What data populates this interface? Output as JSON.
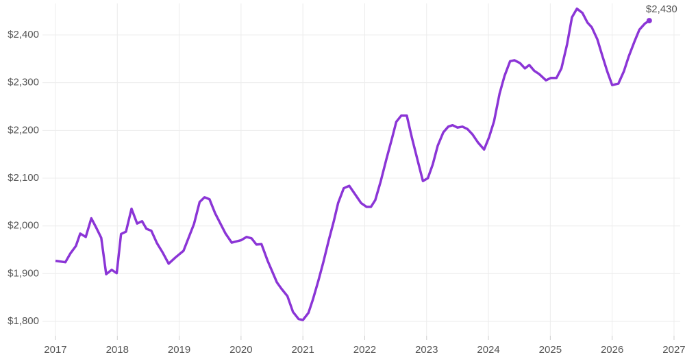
{
  "chart_data": {
    "type": "line",
    "x": [
      2017.0,
      2017.16,
      2017.24,
      2017.33,
      2017.4,
      2017.49,
      2017.58,
      2017.66,
      2017.74,
      2017.82,
      2017.91,
      2017.99,
      2018.06,
      2018.14,
      2018.23,
      2018.32,
      2018.4,
      2018.47,
      2018.55,
      2018.64,
      2018.73,
      2018.83,
      2018.94,
      2019.07,
      2019.24,
      2019.33,
      2019.41,
      2019.49,
      2019.58,
      2019.75,
      2019.85,
      2020.0,
      2020.09,
      2020.17,
      2020.25,
      2020.33,
      2020.43,
      2020.58,
      2020.65,
      2020.75,
      2020.84,
      2020.93,
      2021.0,
      2021.09,
      2021.16,
      2021.25,
      2021.33,
      2021.42,
      2021.5,
      2021.57,
      2021.66,
      2021.75,
      2021.84,
      2021.94,
      2022.03,
      2022.1,
      2022.17,
      2022.26,
      2022.35,
      2022.44,
      2022.51,
      2022.59,
      2022.68,
      2022.76,
      2022.86,
      2022.94,
      2023.02,
      2023.1,
      2023.18,
      2023.27,
      2023.35,
      2023.42,
      2023.5,
      2023.58,
      2023.66,
      2023.74,
      2023.83,
      2023.93,
      2024.01,
      2024.09,
      2024.18,
      2024.26,
      2024.35,
      2024.42,
      2024.51,
      2024.59,
      2024.66,
      2024.74,
      2024.82,
      2024.93,
      2025.01,
      2025.1,
      2025.18,
      2025.27,
      2025.35,
      2025.43,
      2025.52,
      2025.6,
      2025.67,
      2025.76,
      2025.84,
      2025.92,
      2026.0,
      2026.1,
      2026.19,
      2026.27,
      2026.36,
      2026.44,
      2026.53,
      2026.6
    ],
    "series": [
      {
        "color": "#8b35d6",
        "values": [
          1927,
          1924,
          1942,
          1958,
          1984,
          1977,
          2016,
          1996,
          1975,
          1899,
          1908,
          1901,
          1983,
          1988,
          2036,
          2005,
          2010,
          1994,
          1990,
          1964,
          1945,
          1921,
          1934,
          1948,
          2004,
          2050,
          2060,
          2056,
          2027,
          1984,
          1965,
          1970,
          1977,
          1974,
          1961,
          1962,
          1927,
          1882,
          1869,
          1853,
          1820,
          1805,
          1803,
          1818,
          1845,
          1885,
          1924,
          1971,
          2010,
          2048,
          2079,
          2084,
          2067,
          2048,
          2040,
          2040,
          2054,
          2094,
          2140,
          2183,
          2218,
          2231,
          2231,
          2186,
          2135,
          2094,
          2100,
          2129,
          2168,
          2196,
          2208,
          2211,
          2206,
          2208,
          2203,
          2192,
          2175,
          2160,
          2186,
          2219,
          2277,
          2314,
          2345,
          2347,
          2341,
          2330,
          2337,
          2325,
          2318,
          2305,
          2310,
          2310,
          2330,
          2380,
          2437,
          2455,
          2446,
          2426,
          2416,
          2391,
          2357,
          2324,
          2295,
          2298,
          2324,
          2356,
          2386,
          2411,
          2424,
          2430
        ],
        "value_labels": [
          null,
          null,
          null,
          null,
          null,
          null,
          null,
          null,
          null,
          null,
          null,
          null,
          null,
          null,
          null,
          null,
          null,
          null,
          null,
          null,
          null,
          null,
          null,
          null,
          null,
          null,
          null,
          null,
          null,
          null,
          null,
          null,
          null,
          null,
          null,
          null,
          null,
          null,
          null,
          null,
          null,
          null,
          null,
          null,
          null,
          null,
          null,
          null,
          null,
          null,
          null,
          null,
          null,
          null,
          null,
          null,
          null,
          null,
          null,
          null,
          null,
          null,
          null,
          null,
          null,
          null,
          null,
          null,
          null,
          null,
          null,
          null,
          null,
          null,
          null,
          null,
          null,
          null,
          null,
          null,
          null,
          null,
          null,
          null,
          null,
          null,
          null,
          null,
          null,
          null,
          null,
          null,
          null,
          null,
          null,
          null,
          null,
          null,
          null,
          null,
          null,
          null,
          null,
          null,
          null,
          null,
          null,
          null,
          null,
          "$2,430"
        ]
      }
    ],
    "xlim": [
      2016.657,
      2027.1
    ],
    "xticks": [
      2017,
      2018,
      2019,
      2020,
      2021,
      2022,
      2023,
      2024,
      2025,
      2026,
      2027
    ],
    "ylim": [
      1770,
      2466
    ],
    "yticks": [
      {
        "value": 1800,
        "label": "$1,800"
      },
      {
        "value": 1900,
        "label": "$1,900"
      },
      {
        "value": 2000,
        "label": "$2,000"
      },
      {
        "value": 2100,
        "label": "$2,100"
      },
      {
        "value": 2200,
        "label": "$2,200"
      },
      {
        "value": 2300,
        "label": "$2,300"
      },
      {
        "value": 2400,
        "label": "$2,400"
      }
    ],
    "grid": true
  }
}
